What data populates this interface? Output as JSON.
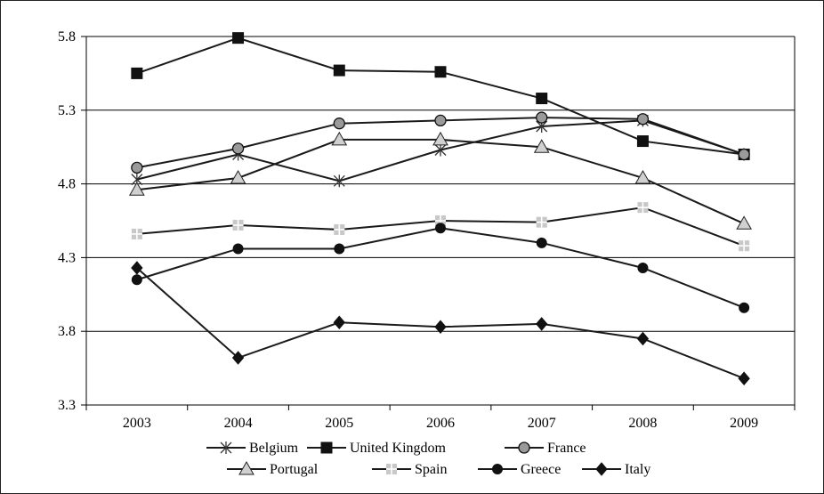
{
  "chart_data": {
    "type": "line",
    "title": "",
    "xlabel": "",
    "ylabel": "",
    "categories": [
      "2003",
      "2004",
      "2005",
      "2006",
      "2007",
      "2008",
      "2009"
    ],
    "ylim": [
      3.3,
      5.8
    ],
    "yticks": [
      "3.3",
      "3.8",
      "4.3",
      "4.8",
      "5.3",
      "5.8"
    ],
    "grid": "horizontal",
    "legend_position": "bottom",
    "series": [
      {
        "name": "Belgium",
        "marker": "asterisk",
        "values": [
          4.83,
          5.0,
          4.82,
          5.03,
          5.19,
          5.23,
          5.0
        ]
      },
      {
        "name": "United Kingdom",
        "marker": "square",
        "values": [
          5.55,
          5.79,
          5.57,
          5.56,
          5.38,
          5.09,
          5.0
        ]
      },
      {
        "name": "France",
        "marker": "circle-gray",
        "values": [
          4.91,
          5.04,
          5.21,
          5.23,
          5.25,
          5.24,
          5.0
        ]
      },
      {
        "name": "Portugal",
        "marker": "triangle",
        "values": [
          4.76,
          4.84,
          5.1,
          5.1,
          5.05,
          4.84,
          4.53
        ]
      },
      {
        "name": "Spain",
        "marker": "plus",
        "values": [
          4.46,
          4.52,
          4.49,
          4.55,
          4.54,
          4.64,
          4.38
        ]
      },
      {
        "name": "Greece",
        "marker": "circle-black",
        "values": [
          4.15,
          4.36,
          4.36,
          4.5,
          4.4,
          4.23,
          3.96
        ]
      },
      {
        "name": "Italy",
        "marker": "diamond",
        "values": [
          4.23,
          3.62,
          3.86,
          3.83,
          3.85,
          3.75,
          3.48
        ]
      }
    ]
  }
}
